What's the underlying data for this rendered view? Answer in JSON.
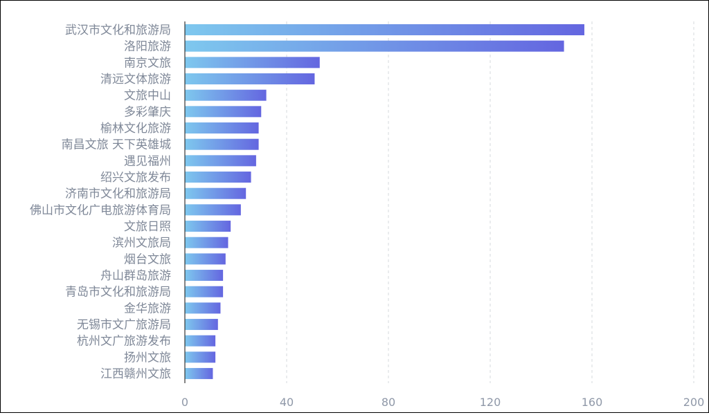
{
  "chart_data": {
    "type": "bar",
    "orientation": "horizontal",
    "categories": [
      "武汉市文化和旅游局",
      "洛阳旅游",
      "南京文旅",
      "清远文体旅游",
      "文旅中山",
      "多彩肇庆",
      "榆林文化旅游",
      "南昌文旅 天下英雄城",
      "遇见福州",
      "绍兴文旅发布",
      "济南市文化和旅游局",
      "佛山市文化广电旅游体育局",
      "文旅日照",
      "滨州文旅局",
      "烟台文旅",
      "舟山群岛旅游",
      "青岛市文化和旅游局",
      "金华旅游",
      "无锡市文广旅游局",
      "杭州文广旅游发布",
      "扬州文旅",
      "江西赣州文旅"
    ],
    "values": [
      157,
      149,
      53,
      51,
      32,
      30,
      29,
      29,
      28,
      26,
      24,
      22,
      18,
      17,
      16,
      15,
      15,
      14,
      13,
      12,
      12,
      11
    ],
    "xlim": [
      0,
      200
    ],
    "xticks": [
      "0",
      "40",
      "80",
      "120",
      "160",
      "200"
    ],
    "grid": "vertical-dashed",
    "colors": {
      "bar_start": "#7ec8ee",
      "bar_end": "#6466e0",
      "axis": "#333333",
      "grid": "#d4d8de",
      "label": "#7f8898",
      "tick": "#8f98a8"
    }
  }
}
